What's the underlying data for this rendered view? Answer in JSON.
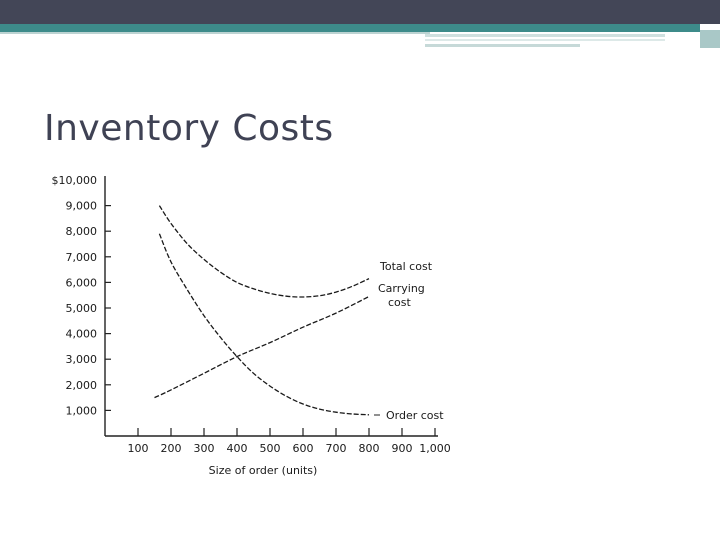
{
  "slide": {
    "title": "Inventory Costs"
  },
  "colors": {
    "top_band": "#434657",
    "accent": "#3d8b8a",
    "title": "#3f4254"
  },
  "chart_data": {
    "type": "line",
    "title": "",
    "xlabel": "Size of order (units)",
    "ylabel": "",
    "xlim": [
      0,
      1000
    ],
    "ylim": [
      0,
      10000
    ],
    "x_ticks": [
      100,
      200,
      300,
      400,
      500,
      600,
      700,
      800,
      900,
      1000
    ],
    "x_tick_labels": [
      "100",
      "200",
      "300",
      "400",
      "500",
      "600",
      "700",
      "800",
      "900",
      "1,000"
    ],
    "y_ticks": [
      1000,
      2000,
      3000,
      4000,
      5000,
      6000,
      7000,
      8000,
      9000,
      10000
    ],
    "y_tick_labels": [
      "1,000",
      "2,000",
      "3,000",
      "4,000",
      "5,000",
      "6,000",
      "7,000",
      "8,000",
      "9,000",
      "$10,000"
    ],
    "grid": false,
    "series": [
      {
        "name": "Total cost",
        "x": [
          165,
          200,
          250,
          300,
          350,
          400,
          450,
          500,
          550,
          600,
          650,
          700,
          750,
          800
        ],
        "y": [
          9000,
          8300,
          7500,
          6900,
          6400,
          6000,
          5750,
          5570,
          5460,
          5430,
          5480,
          5620,
          5850,
          6150
        ]
      },
      {
        "name": "Carrying cost",
        "x": [
          150,
          200,
          300,
          400,
          500,
          600,
          700,
          800
        ],
        "y": [
          1500,
          1800,
          2450,
          3100,
          3650,
          4250,
          4800,
          5450
        ]
      },
      {
        "name": "Order cost",
        "x": [
          165,
          200,
          250,
          300,
          350,
          400,
          450,
          500,
          550,
          600,
          650,
          700,
          750,
          800
        ],
        "y": [
          7900,
          6800,
          5700,
          4700,
          3850,
          3100,
          2450,
          1950,
          1550,
          1250,
          1050,
          930,
          860,
          830
        ]
      }
    ],
    "annotations": [
      {
        "text": "Total cost"
      },
      {
        "text": "Carrying"
      },
      {
        "text": "cost"
      },
      {
        "text": "Order cost"
      }
    ]
  }
}
